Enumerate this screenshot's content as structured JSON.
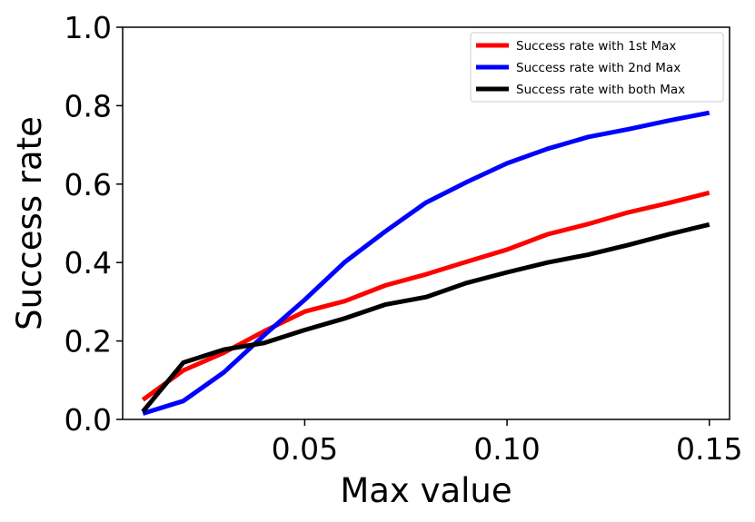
{
  "chart_data": {
    "type": "line",
    "title": "",
    "xlabel": "Max value",
    "ylabel": "Success rate",
    "xlim": [
      0.005,
      0.155
    ],
    "ylim": [
      0.0,
      1.0
    ],
    "xticks": [
      0.05,
      0.1,
      0.15
    ],
    "xtick_labels": [
      "0.05",
      "0.10",
      "0.15"
    ],
    "yticks": [
      0.0,
      0.2,
      0.4,
      0.6,
      0.8,
      1.0
    ],
    "ytick_labels": [
      "0.0",
      "0.2",
      "0.4",
      "0.6",
      "0.8",
      "1.0"
    ],
    "grid": false,
    "legend_position": "top-right",
    "x": [
      0.01,
      0.02,
      0.03,
      0.04,
      0.05,
      0.06,
      0.07,
      0.08,
      0.09,
      0.1,
      0.11,
      0.12,
      0.13,
      0.14,
      0.15
    ],
    "series": [
      {
        "name": "Success rate with 1st Max",
        "color": "#ff0000",
        "values": [
          0.05,
          0.125,
          0.17,
          0.225,
          0.275,
          0.302,
          0.342,
          0.37,
          0.402,
          0.433,
          0.472,
          0.498,
          0.528,
          0.552,
          0.578
        ]
      },
      {
        "name": "Success rate with 2nd Max",
        "color": "#0000ff",
        "values": [
          0.015,
          0.047,
          0.12,
          0.215,
          0.305,
          0.402,
          0.48,
          0.553,
          0.605,
          0.653,
          0.69,
          0.72,
          0.74,
          0.762,
          0.782
        ]
      },
      {
        "name": "Success rate with both Max",
        "color": "#000000",
        "values": [
          0.02,
          0.145,
          0.178,
          0.195,
          0.228,
          0.258,
          0.293,
          0.312,
          0.348,
          0.375,
          0.4,
          0.42,
          0.445,
          0.472,
          0.497
        ]
      }
    ]
  }
}
